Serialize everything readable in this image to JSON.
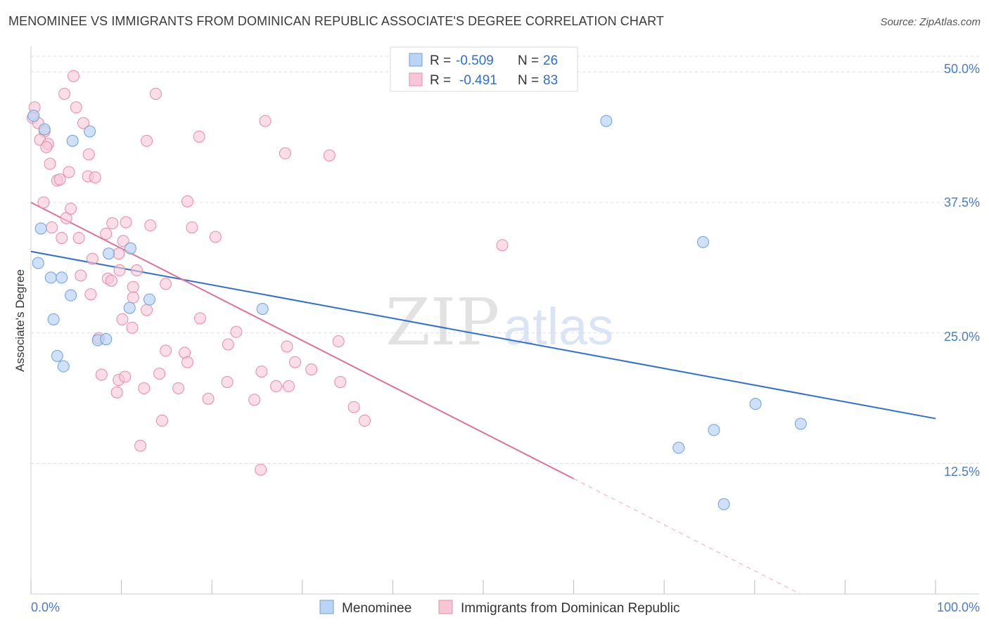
{
  "header": {
    "title": "MENOMINEE VS IMMIGRANTS FROM DOMINICAN REPUBLIC ASSOCIATE'S DEGREE CORRELATION CHART",
    "source": "Source: ZipAtlas.com"
  },
  "watermark": {
    "zip": "ZIP",
    "atlas": "atlas"
  },
  "colors": {
    "blue_fill": "#b9d4f5",
    "blue_stroke": "#6f9ed8",
    "blue_line": "#2f6fd0",
    "pink_fill": "#f7c7d6",
    "pink_stroke": "#e58aa8",
    "pink_line": "#e0709a",
    "tick_text": "#4a7cc4",
    "grid": "#dddddd"
  },
  "legend_top": {
    "r_label": "R =",
    "n_label": "N =",
    "rows": [
      {
        "r": "-0.509",
        "n": "26"
      },
      {
        "r": "-0.491",
        "n": "83"
      }
    ]
  },
  "legend_bottom": [
    "Menominee",
    "Immigrants from Dominican Republic"
  ],
  "chart_data": {
    "type": "scatter",
    "title": "MENOMINEE VS IMMIGRANTS FROM DOMINICAN REPUBLIC ASSOCIATE'S DEGREE CORRELATION CHART",
    "ylabel": "Associate's Degree",
    "xlabel": "",
    "x_tick_labels": [
      "0.0%",
      "100.0%"
    ],
    "y_tick_labels": [
      "50.0%",
      "37.5%",
      "25.0%",
      "12.5%"
    ],
    "y_ticks": [
      50.0,
      37.5,
      25.0,
      12.5
    ],
    "xlim": [
      0,
      100
    ],
    "ylim": [
      0,
      51.5
    ],
    "grid": true,
    "legend_placement": "top-center",
    "series": [
      {
        "name": "Menominee",
        "r": -0.509,
        "n": 26,
        "trend": {
          "x": [
            0,
            100
          ],
          "y": [
            32.8,
            16.8
          ],
          "dashed_from": null
        },
        "points": [
          [
            0.3,
            45.8
          ],
          [
            1.5,
            44.5
          ],
          [
            4.6,
            43.4
          ],
          [
            6.5,
            44.3
          ],
          [
            1.1,
            35.0
          ],
          [
            0.8,
            31.7
          ],
          [
            2.2,
            30.3
          ],
          [
            3.4,
            30.3
          ],
          [
            4.4,
            28.6
          ],
          [
            2.5,
            26.3
          ],
          [
            8.6,
            32.6
          ],
          [
            11.0,
            33.1
          ],
          [
            13.1,
            28.2
          ],
          [
            10.9,
            27.4
          ],
          [
            7.4,
            24.3
          ],
          [
            8.3,
            24.4
          ],
          [
            2.9,
            22.8
          ],
          [
            3.6,
            21.8
          ],
          [
            25.6,
            27.3
          ],
          [
            63.6,
            45.3
          ],
          [
            74.3,
            33.7
          ],
          [
            80.1,
            18.2
          ],
          [
            85.1,
            16.3
          ],
          [
            71.6,
            14.0
          ],
          [
            75.5,
            15.7
          ],
          [
            76.6,
            8.6
          ]
        ]
      },
      {
        "name": "Immigrants from Dominican Republic",
        "r": -0.491,
        "n": 83,
        "trend": {
          "x": [
            0,
            100
          ],
          "y": [
            37.5,
            -6.6
          ],
          "dashed_from": 60
        },
        "points": [
          [
            0.4,
            46.6
          ],
          [
            0.2,
            45.6
          ],
          [
            0.8,
            45.1
          ],
          [
            1.5,
            44.3
          ],
          [
            1.0,
            43.5
          ],
          [
            1.9,
            43.1
          ],
          [
            1.7,
            42.8
          ],
          [
            2.1,
            41.2
          ],
          [
            2.9,
            39.6
          ],
          [
            3.2,
            39.7
          ],
          [
            4.2,
            40.4
          ],
          [
            6.3,
            40.0
          ],
          [
            7.1,
            39.9
          ],
          [
            5.0,
            46.6
          ],
          [
            4.7,
            49.6
          ],
          [
            3.7,
            47.9
          ],
          [
            5.8,
            45.1
          ],
          [
            6.4,
            42.1
          ],
          [
            12.8,
            43.4
          ],
          [
            13.8,
            47.9
          ],
          [
            18.6,
            43.8
          ],
          [
            25.9,
            45.3
          ],
          [
            28.1,
            42.2
          ],
          [
            33.0,
            42.0
          ],
          [
            1.4,
            37.5
          ],
          [
            2.3,
            35.1
          ],
          [
            3.9,
            36.0
          ],
          [
            4.4,
            36.9
          ],
          [
            3.4,
            34.1
          ],
          [
            5.3,
            34.1
          ],
          [
            6.8,
            32.1
          ],
          [
            8.3,
            34.5
          ],
          [
            9.0,
            35.5
          ],
          [
            10.5,
            35.6
          ],
          [
            10.2,
            33.8
          ],
          [
            9.7,
            32.6
          ],
          [
            11.7,
            31.0
          ],
          [
            13.2,
            35.3
          ],
          [
            17.3,
            37.6
          ],
          [
            17.8,
            35.1
          ],
          [
            20.4,
            34.2
          ],
          [
            8.5,
            30.2
          ],
          [
            8.9,
            30.0
          ],
          [
            9.8,
            31.0
          ],
          [
            11.3,
            29.4
          ],
          [
            11.3,
            28.4
          ],
          [
            12.8,
            27.2
          ],
          [
            14.9,
            29.7
          ],
          [
            5.5,
            30.5
          ],
          [
            6.6,
            28.7
          ],
          [
            10.1,
            26.3
          ],
          [
            11.2,
            25.5
          ],
          [
            18.7,
            26.4
          ],
          [
            7.5,
            24.5
          ],
          [
            14.9,
            23.3
          ],
          [
            17.0,
            23.1
          ],
          [
            17.3,
            22.2
          ],
          [
            21.8,
            23.9
          ],
          [
            22.7,
            25.1
          ],
          [
            28.3,
            23.7
          ],
          [
            29.2,
            22.2
          ],
          [
            31.0,
            21.5
          ],
          [
            34.0,
            24.2
          ],
          [
            7.8,
            21.0
          ],
          [
            9.7,
            20.5
          ],
          [
            10.4,
            20.8
          ],
          [
            9.5,
            19.3
          ],
          [
            12.5,
            19.7
          ],
          [
            14.2,
            21.1
          ],
          [
            16.3,
            19.7
          ],
          [
            19.6,
            18.7
          ],
          [
            21.7,
            20.3
          ],
          [
            24.7,
            18.6
          ],
          [
            25.5,
            21.3
          ],
          [
            27.1,
            19.9
          ],
          [
            28.5,
            19.9
          ],
          [
            34.2,
            20.3
          ],
          [
            35.7,
            17.9
          ],
          [
            36.9,
            16.6
          ],
          [
            14.5,
            16.6
          ],
          [
            12.1,
            14.2
          ],
          [
            25.4,
            11.9
          ],
          [
            52.1,
            33.4
          ]
        ]
      }
    ]
  }
}
